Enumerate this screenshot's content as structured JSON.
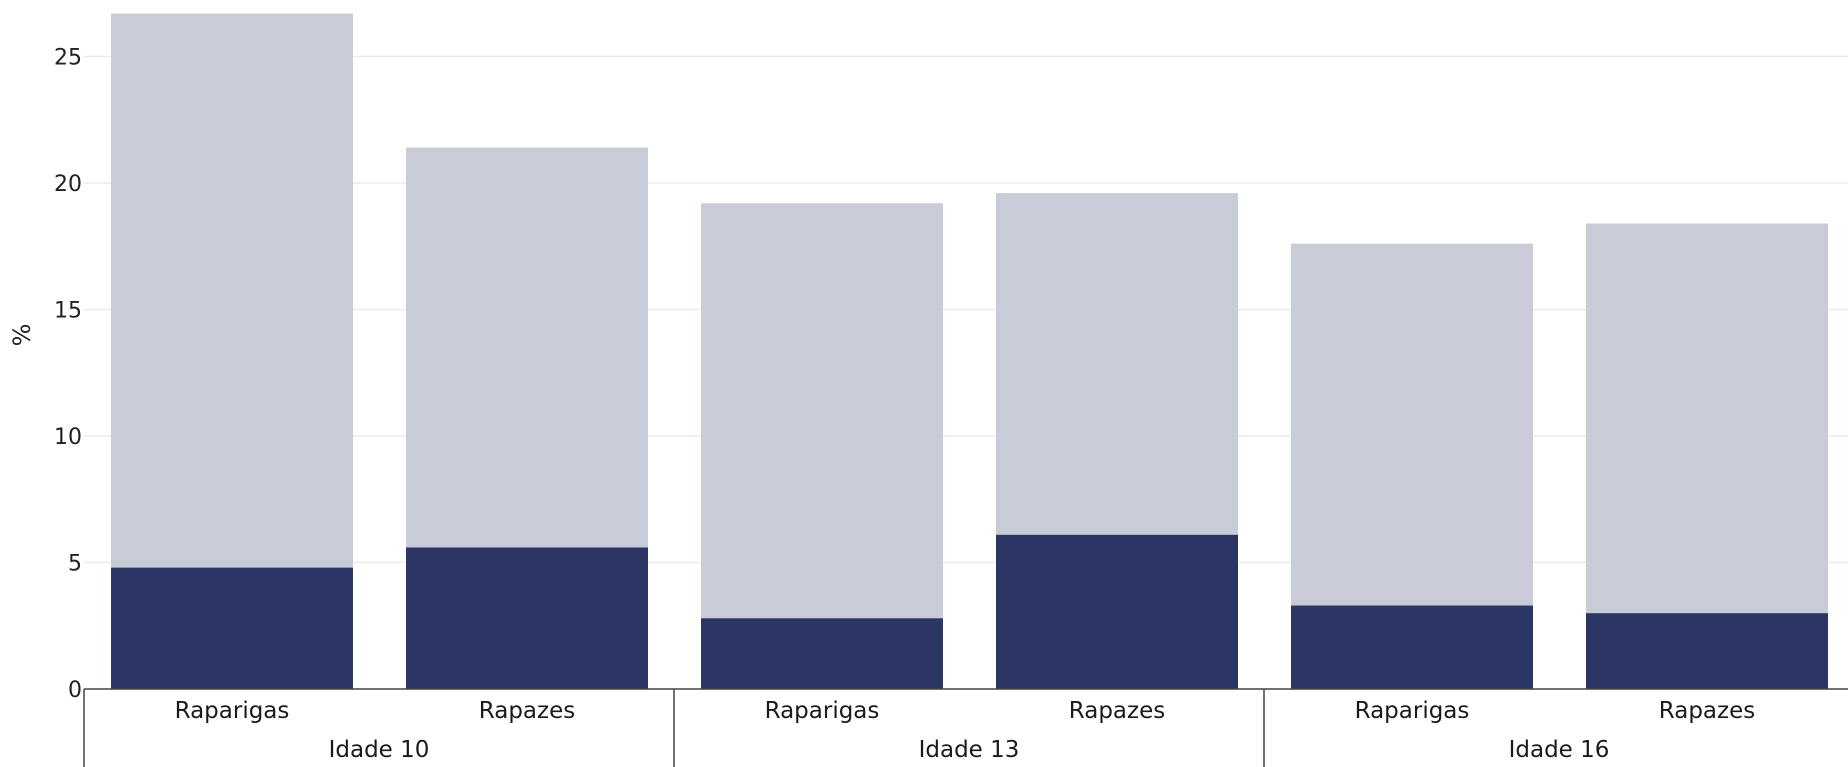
{
  "chart_data": {
    "type": "bar",
    "stacked": true,
    "ylabel": "%",
    "ylim": [
      0,
      26.7
    ],
    "yticks": [
      "0",
      "5",
      "10",
      "15",
      "20",
      "25"
    ],
    "grid": true,
    "groups": [
      {
        "label": "Idade 10",
        "categories": [
          "Raparigas",
          "Rapazes"
        ]
      },
      {
        "label": "Idade 13",
        "categories": [
          "Raparigas",
          "Rapazes"
        ]
      },
      {
        "label": "Idade 16",
        "categories": [
          "Raparigas",
          "Rapazes"
        ]
      }
    ],
    "series": [
      {
        "color": "#2b3664",
        "values": [
          4.8,
          5.6,
          2.8,
          6.1,
          3.3,
          3.0
        ]
      },
      {
        "color": "#c9cbd8",
        "values": [
          21.9,
          15.8,
          16.4,
          13.5,
          14.3,
          15.4
        ]
      }
    ]
  }
}
